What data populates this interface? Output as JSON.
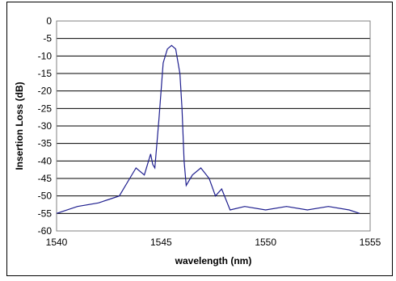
{
  "chart_data": {
    "type": "line",
    "title": "",
    "xlabel": "wavelength (nm)",
    "ylabel": "Insertion Loss (dB)",
    "xlim": [
      1540,
      1555
    ],
    "ylim": [
      -60,
      0
    ],
    "x_ticks": [
      "1540",
      "1545",
      "1550",
      "1555"
    ],
    "y_ticks": [
      "0",
      "-5",
      "-10",
      "-15",
      "-20",
      "-25",
      "-30",
      "-35",
      "-40",
      "-45",
      "-50",
      "-55",
      "-60"
    ],
    "grid": "horizontal",
    "legend": "none",
    "series": [
      {
        "color": "#1f1f8f",
        "points": [
          [
            1540.0,
            -55
          ],
          [
            1541.0,
            -53
          ],
          [
            1542.0,
            -52
          ],
          [
            1542.5,
            -51
          ],
          [
            1543.0,
            -50
          ],
          [
            1543.5,
            -45
          ],
          [
            1543.8,
            -42
          ],
          [
            1544.2,
            -44
          ],
          [
            1544.4,
            -40
          ],
          [
            1544.5,
            -38
          ],
          [
            1544.6,
            -41
          ],
          [
            1544.7,
            -42
          ],
          [
            1544.9,
            -28
          ],
          [
            1545.1,
            -12
          ],
          [
            1545.3,
            -8
          ],
          [
            1545.5,
            -7
          ],
          [
            1545.7,
            -8
          ],
          [
            1545.9,
            -15
          ],
          [
            1546.0,
            -25
          ],
          [
            1546.1,
            -40
          ],
          [
            1546.2,
            -47
          ],
          [
            1546.5,
            -44
          ],
          [
            1546.9,
            -42
          ],
          [
            1547.3,
            -45
          ],
          [
            1547.6,
            -50
          ],
          [
            1547.9,
            -48
          ],
          [
            1548.3,
            -54
          ],
          [
            1549.0,
            -53
          ],
          [
            1550.0,
            -54
          ],
          [
            1551.0,
            -53
          ],
          [
            1552.0,
            -54
          ],
          [
            1553.0,
            -53
          ],
          [
            1554.0,
            -54
          ],
          [
            1554.5,
            -55
          ]
        ]
      }
    ]
  }
}
